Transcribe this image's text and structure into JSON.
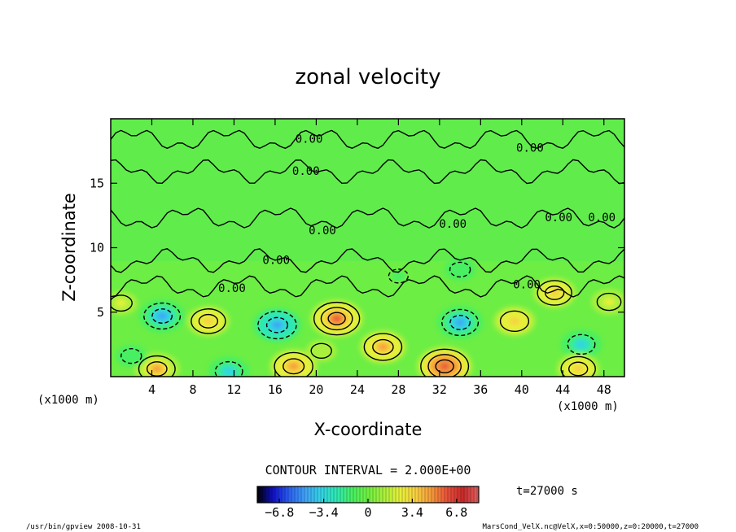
{
  "chart_data": {
    "type": "heatmap",
    "title": "zonal velocity",
    "xlabel": "X-coordinate",
    "ylabel": "Z-coordinate",
    "x_unit_left": "(x1000 m)",
    "x_unit_right": "(x1000 m)",
    "xlim": [
      0,
      50
    ],
    "ylim": [
      0,
      20
    ],
    "x_ticks": [
      4,
      8,
      12,
      16,
      20,
      24,
      28,
      32,
      36,
      40,
      44,
      48
    ],
    "y_ticks": [
      5,
      10,
      15
    ],
    "contour_interval_text": "CONTOUR INTERVAL = 2.000E+00",
    "contour_labels": [
      {
        "text": "0.00",
        "x": 19.3,
        "y": 18.4
      },
      {
        "text": "0.00",
        "x": 40.8,
        "y": 17.7
      },
      {
        "text": "0.00",
        "x": 19.0,
        "y": 15.9
      },
      {
        "text": "0.00",
        "x": 20.6,
        "y": 11.3
      },
      {
        "text": "0.00",
        "x": 33.3,
        "y": 11.8
      },
      {
        "text": "0.00",
        "x": 43.6,
        "y": 12.3
      },
      {
        "text": "0.00",
        "x": 47.8,
        "y": 12.3
      },
      {
        "text": "0.00",
        "x": 16.1,
        "y": 9.0
      },
      {
        "text": "0.00",
        "x": 11.8,
        "y": 6.8
      },
      {
        "text": "0.00",
        "x": 40.5,
        "y": 7.1
      }
    ],
    "colorbar": {
      "ticks": [
        -6.8,
        -3.4,
        0,
        3.4,
        6.8
      ],
      "tick_labels": [
        "−6.8",
        "−3.4",
        "0",
        "3.4",
        "6.8"
      ],
      "range": [
        -8.5,
        8.5
      ],
      "colors": [
        "#000000",
        "#1010c8",
        "#2a5ef0",
        "#3fa0f5",
        "#32d2e6",
        "#2ee8b4",
        "#48ef62",
        "#6ef040",
        "#a8f03c",
        "#e6f03a",
        "#f8d040",
        "#f49a3a",
        "#e8503a",
        "#c82a2a",
        "#e06060"
      ]
    },
    "features": [
      {
        "x": 5.0,
        "y": 4.7,
        "value": -4.5
      },
      {
        "x": 9.5,
        "y": 4.3,
        "value": 4.0
      },
      {
        "x": 16.2,
        "y": 4.0,
        "value": -5.0
      },
      {
        "x": 22.0,
        "y": 4.5,
        "value": 6.0
      },
      {
        "x": 26.5,
        "y": 2.3,
        "value": 4.8
      },
      {
        "x": 34.0,
        "y": 4.2,
        "value": -4.5
      },
      {
        "x": 39.3,
        "y": 4.3,
        "value": 3.8
      },
      {
        "x": 43.2,
        "y": 6.5,
        "value": 4.0
      },
      {
        "x": 45.8,
        "y": 2.5,
        "value": -3.5
      },
      {
        "x": 4.5,
        "y": 0.6,
        "value": 4.5
      },
      {
        "x": 11.5,
        "y": 0.4,
        "value": -3.5
      },
      {
        "x": 17.8,
        "y": 0.8,
        "value": 5.0
      },
      {
        "x": 32.5,
        "y": 0.8,
        "value": 6.5
      },
      {
        "x": 45.5,
        "y": 0.6,
        "value": 4.0
      },
      {
        "x": 2.0,
        "y": 1.6,
        "value": -1.5
      },
      {
        "x": 34.0,
        "y": 8.3,
        "value": -1.5
      },
      {
        "x": 28.0,
        "y": 7.8,
        "value": -1.2
      },
      {
        "x": 20.5,
        "y": 2.0,
        "value": 1.5
      },
      {
        "x": 48.5,
        "y": 5.8,
        "value": 2.5
      },
      {
        "x": 1.0,
        "y": 5.7,
        "value": 2.0
      }
    ]
  },
  "annotations": {
    "time_label": "t=27000 s",
    "footer_left": "/usr/bin/gpview   2008-10-31",
    "footer_right": "MarsCond_VelX.nc@VelX,x=0:50000,z=0:20000,t=27000"
  }
}
